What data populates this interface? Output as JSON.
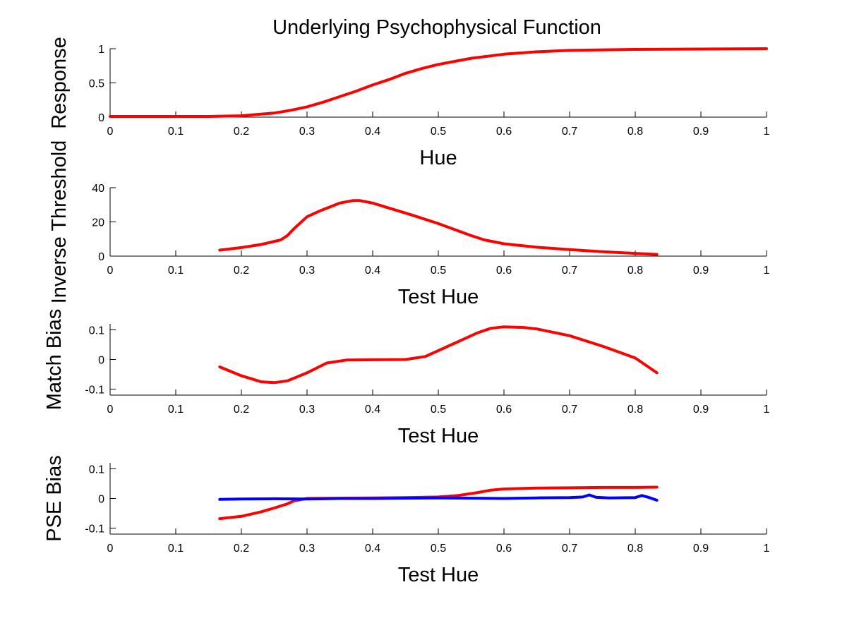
{
  "figure": {
    "title": "Underlying Psychophysical Function"
  },
  "colors": {
    "red": "#ff0000",
    "blue": "#0000ff",
    "axis": "#000000"
  },
  "chart_data": [
    {
      "type": "line",
      "title": "Underlying Psychophysical Function",
      "xlabel": "Hue",
      "ylabel": "Response",
      "xlim": [
        0,
        1
      ],
      "ylim": [
        0,
        1
      ],
      "xticks": [
        "0",
        "0.1",
        "0.2",
        "0.3",
        "0.4",
        "0.5",
        "0.6",
        "0.7",
        "0.8",
        "0.9",
        "1"
      ],
      "yticks": [
        [
          "0",
          0
        ],
        [
          "0.5",
          0.5
        ],
        [
          "1",
          1
        ]
      ],
      "grid": false,
      "series": [
        {
          "color": "#ff0000",
          "x": [
            0,
            0.1,
            0.15,
            0.2,
            0.225,
            0.25,
            0.275,
            0.3,
            0.325,
            0.35,
            0.375,
            0.4,
            0.425,
            0.45,
            0.475,
            0.5,
            0.55,
            0.6,
            0.65,
            0.7,
            0.8,
            0.9,
            1
          ],
          "y": [
            0.01,
            0.01,
            0.01,
            0.02,
            0.04,
            0.06,
            0.1,
            0.15,
            0.22,
            0.3,
            0.38,
            0.47,
            0.55,
            0.64,
            0.71,
            0.77,
            0.86,
            0.92,
            0.955,
            0.975,
            0.99,
            0.995,
            1.0
          ]
        }
      ]
    },
    {
      "type": "line",
      "xlabel": "Test Hue",
      "ylabel": "Inverse Threshold",
      "xlim": [
        0,
        1
      ],
      "ylim": [
        0,
        40
      ],
      "xticks": [
        "0",
        "0.1",
        "0.2",
        "0.3",
        "0.4",
        "0.5",
        "0.6",
        "0.7",
        "0.8",
        "0.9",
        "1"
      ],
      "yticks": [
        [
          "0",
          0
        ],
        [
          "20",
          20
        ],
        [
          "40",
          40
        ]
      ],
      "grid": false,
      "series": [
        {
          "color": "#ff0000",
          "x": [
            0.167,
            0.2,
            0.23,
            0.26,
            0.27,
            0.28,
            0.29,
            0.3,
            0.32,
            0.35,
            0.37,
            0.38,
            0.4,
            0.43,
            0.46,
            0.5,
            0.53,
            0.55,
            0.57,
            0.6,
            0.65,
            0.7,
            0.75,
            0.8,
            0.833
          ],
          "y": [
            3.5,
            5.0,
            6.8,
            9.5,
            12.0,
            16.0,
            19.5,
            23.0,
            26.5,
            31.0,
            32.5,
            32.5,
            31.0,
            27.5,
            24.0,
            19.0,
            14.8,
            12.0,
            9.5,
            7.2,
            5.2,
            3.8,
            2.6,
            1.6,
            1.0
          ]
        }
      ]
    },
    {
      "type": "line",
      "xlabel": "Test Hue",
      "ylabel": "Match Bias",
      "xlim": [
        0,
        1
      ],
      "ylim": [
        -0.12,
        0.12
      ],
      "xticks": [
        "0",
        "0.1",
        "0.2",
        "0.3",
        "0.4",
        "0.5",
        "0.6",
        "0.7",
        "0.8",
        "0.9",
        "1"
      ],
      "yticks": [
        [
          "-0.1",
          -0.1
        ],
        [
          "0",
          0
        ],
        [
          "0.1",
          0.1
        ]
      ],
      "grid": false,
      "series": [
        {
          "color": "#ff0000",
          "x": [
            0.167,
            0.2,
            0.23,
            0.25,
            0.27,
            0.3,
            0.33,
            0.36,
            0.4,
            0.45,
            0.48,
            0.5,
            0.53,
            0.56,
            0.58,
            0.6,
            0.63,
            0.65,
            0.7,
            0.75,
            0.8,
            0.833
          ],
          "y": [
            -0.025,
            -0.055,
            -0.075,
            -0.078,
            -0.072,
            -0.045,
            -0.012,
            -0.002,
            -0.001,
            0.0,
            0.01,
            0.03,
            0.06,
            0.09,
            0.105,
            0.11,
            0.108,
            0.103,
            0.08,
            0.045,
            0.005,
            -0.045
          ]
        }
      ]
    },
    {
      "type": "line",
      "xlabel": "Test Hue",
      "ylabel": "PSE Bias",
      "xlim": [
        0,
        1
      ],
      "ylim": [
        -0.12,
        0.12
      ],
      "xticks": [
        "0",
        "0.1",
        "0.2",
        "0.3",
        "0.4",
        "0.5",
        "0.6",
        "0.7",
        "0.8",
        "0.9",
        "1"
      ],
      "yticks": [
        [
          "-0.1",
          -0.1
        ],
        [
          "0",
          0
        ],
        [
          "0.1",
          0.1
        ]
      ],
      "grid": false,
      "series": [
        {
          "color": "#ff0000",
          "x": [
            0.167,
            0.2,
            0.23,
            0.25,
            0.27,
            0.28,
            0.3,
            0.35,
            0.4,
            0.45,
            0.5,
            0.53,
            0.56,
            0.58,
            0.6,
            0.65,
            0.7,
            0.75,
            0.8,
            0.833
          ],
          "y": [
            -0.068,
            -0.06,
            -0.045,
            -0.032,
            -0.018,
            -0.008,
            0.0,
            0.001,
            0.002,
            0.003,
            0.005,
            0.01,
            0.02,
            0.028,
            0.032,
            0.035,
            0.036,
            0.037,
            0.037,
            0.038
          ]
        },
        {
          "color": "#0000ff",
          "x": [
            0.167,
            0.2,
            0.25,
            0.3,
            0.35,
            0.4,
            0.45,
            0.5,
            0.55,
            0.6,
            0.65,
            0.7,
            0.72,
            0.73,
            0.74,
            0.76,
            0.8,
            0.81,
            0.82,
            0.833
          ],
          "y": [
            -0.003,
            -0.002,
            -0.001,
            -0.002,
            0.0,
            0.0,
            0.001,
            0.002,
            0.001,
            0.0,
            0.002,
            0.003,
            0.005,
            0.012,
            0.004,
            0.002,
            0.003,
            0.01,
            0.004,
            -0.006
          ]
        }
      ]
    }
  ]
}
